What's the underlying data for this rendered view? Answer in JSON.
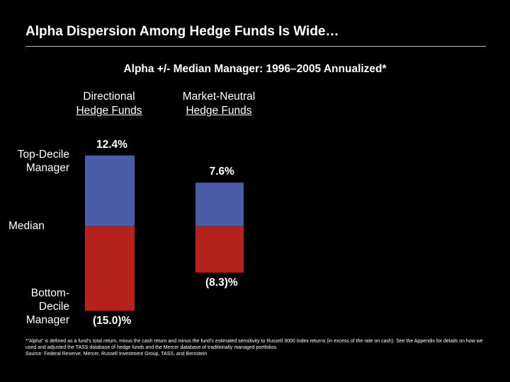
{
  "title": "Alpha Dispersion Among Hedge Funds Is Wide…",
  "chart_data": {
    "type": "bar",
    "subtitle": "Alpha +/- Median Manager: 1996–2005 Annualized*",
    "categories": [
      {
        "line1": "Directional",
        "line2": "Hedge Funds"
      },
      {
        "line1": "Market-Neutral",
        "line2": "Hedge Funds"
      }
    ],
    "series": [
      {
        "values": [
          12.4,
          7.6
        ],
        "labels": [
          "12.4%",
          "7.6%"
        ],
        "color": "#4a5ba8"
      },
      {
        "values": [
          -15.0,
          -8.3
        ],
        "labels": [
          "(15.0)%",
          "(8.3)%"
        ],
        "color": "#b5221c"
      }
    ],
    "row_labels": {
      "top": [
        "Top-Decile",
        "Manager"
      ],
      "median": "Median",
      "bottom": [
        "Bottom-",
        "Decile",
        "Manager"
      ]
    },
    "ylim": [
      -15.0,
      12.4
    ]
  },
  "footnote": {
    "line1": "*“Alpha” is defined as a fund’s total return, minus the cash return and minus the fund’s estimated sensitivity to Russell 3000 Index returns (in excess of the rate on cash). See the Appendix for details on how we used and adjusted the TASS database of hedge funds and the Mercer database of traditionally managed portfolios.",
    "line2": "Source: Federal Reserve, Mercer, Russell Investment Group, TASS, and Bernstein"
  }
}
